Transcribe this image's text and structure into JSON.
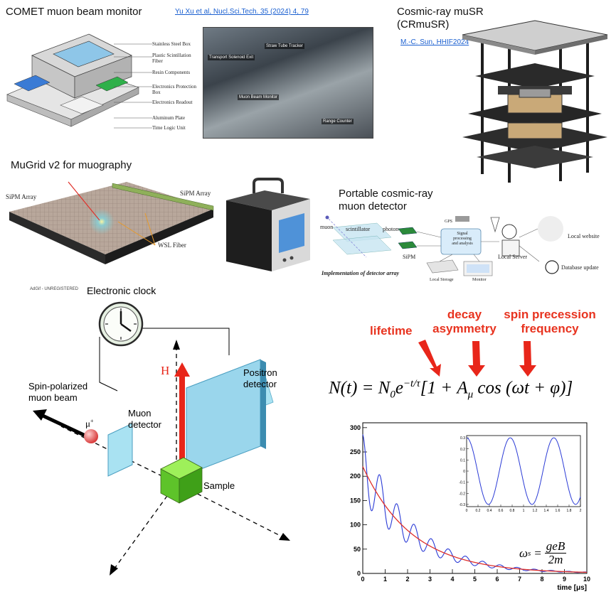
{
  "comet": {
    "title": "COMET muon beam monitor",
    "citation": "Yu Xu et al, Nucl.Sci.Tech. 35 (2024) 4, 79",
    "labels": [
      "Stainless Steel Box",
      "Plastic Scintillation Fiber",
      "Resin Components",
      "Electronics Protection Box",
      "Electronics Readout",
      "Aluminum Plate",
      "Time Logic Unit"
    ],
    "photo_labels": [
      "Transport Solenoid Exit",
      "Straw Tube Tracker",
      "Muon Beam Monitor",
      "Range Counter"
    ]
  },
  "crmusr": {
    "title_line1": "Cosmic-ray muSR",
    "title_line2": "(CRmuSR)",
    "citation": "M.-C. Sun, HHIF2024"
  },
  "mugrid": {
    "title": "MuGrid v2 for muography",
    "sipm_left": "SiPM Array",
    "sipm_right": "SiPM Array",
    "wsl": "WSL Fiber"
  },
  "portable": {
    "title_line1": "Portable cosmic-ray",
    "title_line2": "muon detector",
    "muon": "muon",
    "scintillator": "scintillator",
    "photon": "photon",
    "sipm": "SiPM",
    "gps": "GPS",
    "signal": [
      "Signal",
      "processing",
      "and analysis"
    ],
    "local_server": "Local Server",
    "local_website": "Local website",
    "database_update": "Database update",
    "local_storage": "Local Storage",
    "monitor": "Monitor",
    "caption": "Implementation of detector array"
  },
  "musr": {
    "watermark": "AdGif - UNREGISTERED",
    "clock_label": "Electronic clock",
    "field": "H",
    "positron_line1": "Positron",
    "positron_line2": "detector",
    "beam_line1": "Spin-polarized",
    "beam_line2": "muon beam",
    "mu": "μ",
    "mu_sup": "+",
    "muon_det_line1": "Muon",
    "muon_det_line2": "detector",
    "sample": "Sample"
  },
  "formula": {
    "lifetime": "lifetime",
    "decay_line1": "decay",
    "decay_line2": "asymmetry",
    "spin_line1": "spin precession",
    "spin_line2": "frequency",
    "lhs": "N(t) = N",
    "sub0": "0",
    "e": "e",
    "exponent": "−t/τ",
    "bracket": "[1 + A",
    "sub_mu": "μ",
    "tail": " cos (ωt + φ)]",
    "omega_lhs": "ω",
    "omega_sub": "s",
    "omega_num": "geB",
    "omega_den": "2m"
  },
  "chart_data": {
    "type": "line",
    "xlabel": "time [μs]",
    "xlim": [
      0,
      10
    ],
    "ylim": [
      0,
      310
    ],
    "x_ticks": [
      "0",
      "1",
      "2",
      "3",
      "4",
      "5",
      "6",
      "7",
      "8",
      "9",
      "10"
    ],
    "y_ticks": [
      "0",
      "50",
      "100",
      "150",
      "200",
      "250",
      "300"
    ],
    "series": [
      {
        "kind": "oscillating decay",
        "N0": 220,
        "tau_us": 2.2,
        "asymmetry": 0.3,
        "omega_rad_per_us": 8.2,
        "phase": 0,
        "color": "#2b3bd6"
      },
      {
        "kind": "exponential envelope",
        "N0": 220,
        "tau_us": 2.2,
        "color": "#e0302a"
      }
    ],
    "inset": {
      "type": "line",
      "xlim": [
        0,
        2
      ],
      "ylim": [
        -0.32,
        0.32
      ],
      "x_ticks": [
        "0",
        "0.2",
        "0.4",
        "0.6",
        "0.8",
        "1",
        "1.2",
        "1.4",
        "1.6",
        "1.8",
        "2"
      ],
      "y_ticks": [
        "-0.3",
        "-0.2",
        "-0.1",
        "0",
        "0.1",
        "0.2",
        "0.3"
      ],
      "amplitude": 0.3,
      "omega_rad_per_us": 8.2,
      "color": "#2b3bd6"
    }
  }
}
